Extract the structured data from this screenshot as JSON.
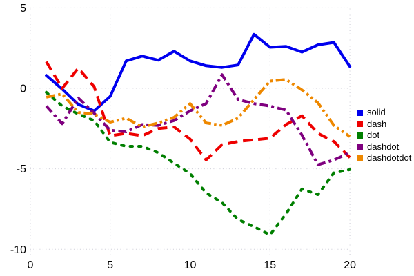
{
  "chart_data": {
    "type": "line",
    "title": "",
    "xlabel": "",
    "ylabel": "",
    "x": [
      1,
      2,
      3,
      4,
      5,
      6,
      7,
      8,
      9,
      10,
      11,
      12,
      13,
      14,
      15,
      16,
      17,
      18,
      19,
      20
    ],
    "series": [
      {
        "name": "solid",
        "color": "#0000ee",
        "dash": "solid",
        "values": [
          0.8,
          -0.05,
          -1.0,
          -1.4,
          -0.5,
          1.7,
          2.0,
          1.75,
          2.3,
          1.7,
          1.4,
          1.3,
          1.45,
          3.35,
          2.55,
          2.6,
          2.25,
          2.7,
          2.85,
          1.35
        ]
      },
      {
        "name": "dash",
        "color": "#ee0000",
        "dash": "dash",
        "values": [
          1.65,
          0.0,
          1.25,
          0.1,
          -2.95,
          -2.8,
          -2.95,
          -2.5,
          -2.4,
          -3.15,
          -4.45,
          -3.5,
          -3.3,
          -3.2,
          -3.1,
          -2.25,
          -1.7,
          -2.8,
          -3.3,
          -4.3
        ]
      },
      {
        "name": "dot",
        "color": "#007f00",
        "dash": "dot",
        "values": [
          -0.25,
          -1.1,
          -1.6,
          -2.0,
          -3.35,
          -3.6,
          -3.6,
          -4.0,
          -4.65,
          -5.3,
          -6.5,
          -7.1,
          -8.15,
          -8.6,
          -9.1,
          -7.8,
          -6.25,
          -6.6,
          -5.25,
          -5.05
        ]
      },
      {
        "name": "dashdot",
        "color": "#7f007f",
        "dash": "dashdot",
        "values": [
          -1.1,
          -2.2,
          -0.6,
          -1.55,
          -2.6,
          -2.7,
          -2.25,
          -2.3,
          -2.0,
          -1.4,
          -0.95,
          0.85,
          -0.7,
          -0.95,
          -1.1,
          -1.35,
          -2.9,
          -4.75,
          -4.45,
          -4.0
        ]
      },
      {
        "name": "dashdotdot",
        "color": "#ee8800",
        "dash": "dashdotdot",
        "values": [
          -0.55,
          -0.35,
          -1.5,
          -1.6,
          -2.1,
          -1.85,
          -2.4,
          -2.15,
          -1.8,
          -0.95,
          -2.15,
          -2.3,
          -1.85,
          -0.7,
          0.45,
          0.55,
          -0.1,
          -0.9,
          -2.3,
          -3.0
        ]
      }
    ],
    "x_ticks": [
      0,
      5,
      10,
      15,
      20
    ],
    "y_ticks": [
      5,
      0,
      -5,
      -10
    ],
    "xlim": [
      0,
      20
    ],
    "ylim": [
      -10,
      5
    ],
    "grid": true,
    "grid_color": "#ccccd6",
    "legend_position": "right"
  }
}
